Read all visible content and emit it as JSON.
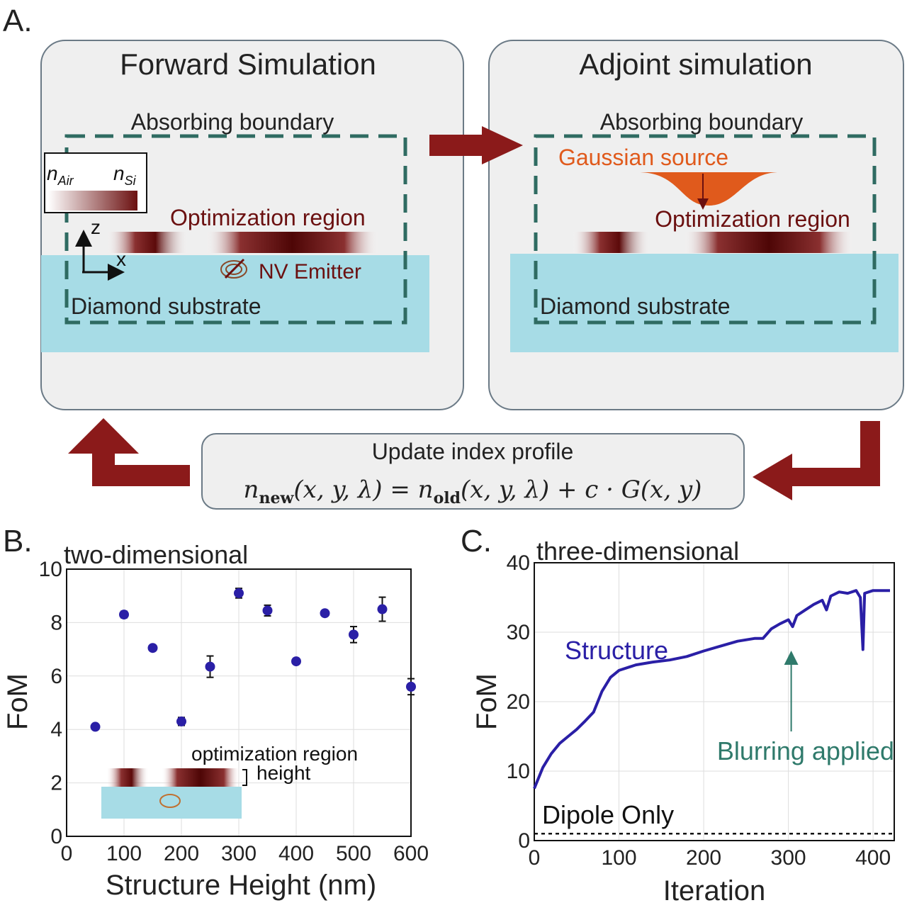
{
  "panel_a": {
    "label": "A.",
    "forward": {
      "title": "Forward Simulation",
      "absorbing": "Absorbing boundary",
      "legend_low": "n",
      "legend_low_sub": "Air",
      "legend_high": "n",
      "legend_high_sub": "Si",
      "opt_region": "Optimization region",
      "axis_z": "z",
      "axis_x": "x",
      "emitter": "NV Emitter",
      "substrate": "Diamond substrate"
    },
    "adjoint": {
      "title": "Adjoint simulation",
      "absorbing": "Absorbing boundary",
      "source": "Gaussian source",
      "opt_region": "Optimization region",
      "substrate": "Diamond substrate"
    },
    "update": {
      "title": "Update index profile",
      "eq_lhs_n": "n",
      "eq_lhs_sub": "new",
      "eq_lhs_args": "(x, y, λ) = ",
      "eq_rhs_n": "n",
      "eq_rhs_sub": "old",
      "eq_rhs_args": "(x, y, λ) + c · G(x, y)"
    }
  },
  "colors": {
    "arrow": "#8b1a1a",
    "box_fill": "#efefef",
    "box_stroke": "#6b7a86",
    "boundary": "#2f6b62",
    "substrate": "#a7dce6",
    "source": "#e05a1c",
    "dark_red": "#6b1010",
    "series": "#2a1fa6",
    "annotation_teal": "#2f7a6b"
  },
  "panel_b": {
    "label": "B.",
    "inset_label_line1": "optimization region",
    "inset_label_line2": "height"
  },
  "panel_c": {
    "label": "C.",
    "structure_label": "Structure",
    "dipole_label": "Dipole Only",
    "blur_label": "Blurring applied"
  },
  "chart_data": [
    {
      "type": "scatter",
      "title": "two-dimensional",
      "xlabel": "Structure Height (nm)",
      "ylabel": "FoM",
      "xlim": [
        0,
        600
      ],
      "ylim": [
        0,
        10
      ],
      "xticks": [
        0,
        100,
        200,
        300,
        400,
        500,
        600
      ],
      "yticks": [
        0,
        2,
        4,
        6,
        8,
        10
      ],
      "grid": true,
      "points": [
        {
          "x": 50,
          "y": 4.1,
          "err": 0.08
        },
        {
          "x": 100,
          "y": 8.3,
          "err": 0.12
        },
        {
          "x": 150,
          "y": 7.05,
          "err": 0.05
        },
        {
          "x": 200,
          "y": 4.3,
          "err": 0.15
        },
        {
          "x": 250,
          "y": 6.35,
          "err": 0.4
        },
        {
          "x": 300,
          "y": 9.1,
          "err": 0.18
        },
        {
          "x": 350,
          "y": 8.45,
          "err": 0.2
        },
        {
          "x": 400,
          "y": 6.55,
          "err": 0.05
        },
        {
          "x": 450,
          "y": 8.35,
          "err": 0.07
        },
        {
          "x": 500,
          "y": 7.55,
          "err": 0.3
        },
        {
          "x": 550,
          "y": 8.5,
          "err": 0.45
        },
        {
          "x": 600,
          "y": 5.6,
          "err": 0.3
        }
      ]
    },
    {
      "type": "line",
      "title": "three-dimensional",
      "xlabel": "Iteration",
      "ylabel": "FoM",
      "xlim": [
        0,
        425
      ],
      "ylim": [
        0,
        40
      ],
      "xticks": [
        0,
        100,
        200,
        300,
        400
      ],
      "yticks": [
        0,
        10,
        20,
        30,
        40
      ],
      "grid": true,
      "series": [
        {
          "name": "Structure",
          "x": [
            0,
            10,
            20,
            30,
            40,
            50,
            60,
            70,
            80,
            90,
            100,
            120,
            140,
            160,
            180,
            200,
            220,
            240,
            260,
            270,
            280,
            290,
            300,
            305,
            310,
            320,
            330,
            340,
            345,
            350,
            360,
            370,
            380,
            385,
            388,
            390,
            400,
            410,
            420
          ],
          "y": [
            7.5,
            10.5,
            12.5,
            14,
            15,
            16,
            17.2,
            18.5,
            21.5,
            23.5,
            24.5,
            25.3,
            25.7,
            26,
            26.5,
            27.3,
            28,
            28.7,
            29.1,
            29.1,
            30.5,
            31.2,
            31.8,
            30.8,
            32.4,
            33.2,
            34,
            34.6,
            33.2,
            35.2,
            35.8,
            35.6,
            36,
            35,
            27.5,
            35.6,
            36,
            36,
            36
          ]
        },
        {
          "name": "Dipole Only",
          "x": [
            0,
            425
          ],
          "y": [
            1,
            1
          ]
        }
      ],
      "annotations": [
        {
          "text": "Blurring applied",
          "x": 300
        }
      ]
    }
  ]
}
